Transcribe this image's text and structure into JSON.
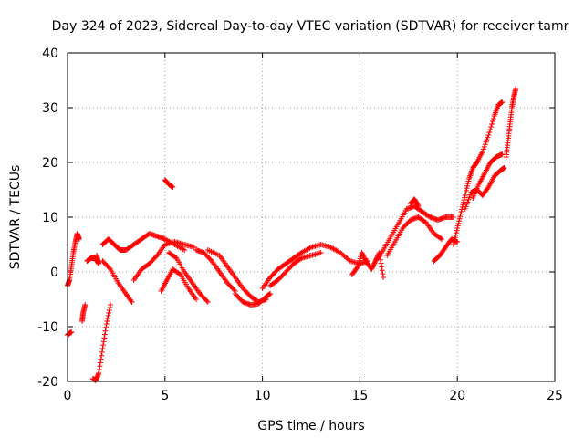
{
  "chart_data": {
    "type": "scatter",
    "title": "Day 324 of 2023, Sidereal Day-to-day VTEC variation (SDTVAR) for receiver tamr",
    "xlabel": "GPS time / hours",
    "ylabel": "SDTVAR / TECUs",
    "xlim": [
      0,
      25
    ],
    "ylim": [
      -20,
      40
    ],
    "xticks": [
      0,
      5,
      10,
      15,
      20,
      25
    ],
    "yticks": [
      -20,
      -10,
      0,
      10,
      20,
      30,
      40
    ],
    "grid": true,
    "marker": "+",
    "color": "#ff0000",
    "segments": [
      {
        "name": "early-tail",
        "points": [
          [
            0.0,
            -11.5
          ],
          [
            0.1,
            -11.2
          ],
          [
            0.2,
            -11.0
          ]
        ]
      },
      {
        "name": "rise-0",
        "points": [
          [
            0.0,
            -2.5
          ],
          [
            0.1,
            -1.5
          ],
          [
            0.2,
            1.0
          ],
          [
            0.3,
            3.5
          ],
          [
            0.4,
            5.5
          ],
          [
            0.5,
            7.0
          ],
          [
            0.6,
            6.0
          ]
        ]
      },
      {
        "name": "drop-1",
        "points": [
          [
            0.75,
            -9.0
          ],
          [
            0.8,
            -7.5
          ],
          [
            0.9,
            -6.0
          ]
        ]
      },
      {
        "name": "plateau-1",
        "points": [
          [
            1.0,
            2.0
          ],
          [
            1.2,
            2.5
          ],
          [
            1.4,
            2.5
          ],
          [
            1.6,
            1.5
          ],
          [
            1.5,
            3.0
          ]
        ]
      },
      {
        "name": "deep-dip",
        "points": [
          [
            1.3,
            -19.5
          ],
          [
            1.45,
            -19.8
          ],
          [
            1.6,
            -18.5
          ],
          [
            1.8,
            -14.0
          ],
          [
            2.0,
            -9.5
          ],
          [
            2.2,
            -6.0
          ]
        ]
      },
      {
        "name": "arc-2",
        "points": [
          [
            1.8,
            5.0
          ],
          [
            2.1,
            6.0
          ],
          [
            2.4,
            5.0
          ],
          [
            2.7,
            4.0
          ],
          [
            3.0,
            4.0
          ],
          [
            3.4,
            5.0
          ],
          [
            3.8,
            6.0
          ],
          [
            4.2,
            7.0
          ],
          [
            4.6,
            6.5
          ],
          [
            5.0,
            6.0
          ],
          [
            5.5,
            5.0
          ],
          [
            6.0,
            4.0
          ]
        ]
      },
      {
        "name": "descend-2",
        "points": [
          [
            1.8,
            2.0
          ],
          [
            2.2,
            0.5
          ],
          [
            2.6,
            -2.0
          ],
          [
            3.0,
            -4.0
          ],
          [
            3.3,
            -5.5
          ]
        ]
      },
      {
        "name": "arc-3",
        "points": [
          [
            3.4,
            -1.5
          ],
          [
            3.8,
            0.5
          ],
          [
            4.2,
            1.5
          ],
          [
            4.6,
            3.0
          ],
          [
            5.0,
            5.0
          ],
          [
            5.5,
            5.5
          ],
          [
            6.0,
            5.0
          ],
          [
            6.5,
            4.5
          ]
        ]
      },
      {
        "name": "spike-5",
        "points": [
          [
            5.0,
            16.8
          ],
          [
            5.2,
            16.0
          ],
          [
            5.4,
            15.5
          ]
        ]
      },
      {
        "name": "dip-4",
        "points": [
          [
            4.8,
            -3.5
          ],
          [
            5.1,
            -1.5
          ],
          [
            5.4,
            0.5
          ],
          [
            5.8,
            -0.5
          ],
          [
            6.2,
            -3.0
          ],
          [
            6.6,
            -5.0
          ]
        ]
      },
      {
        "name": "fan-5",
        "points": [
          [
            5.2,
            3.5
          ],
          [
            5.6,
            2.5
          ],
          [
            6.0,
            0.0
          ],
          [
            6.4,
            -2.0
          ],
          [
            6.8,
            -4.0
          ],
          [
            7.2,
            -5.5
          ]
        ]
      },
      {
        "name": "fan-6",
        "points": [
          [
            6.6,
            4.0
          ],
          [
            7.0,
            3.5
          ],
          [
            7.4,
            2.0
          ],
          [
            7.8,
            0.0
          ],
          [
            8.2,
            -2.0
          ],
          [
            8.6,
            -3.5
          ]
        ]
      },
      {
        "name": "fan-7",
        "points": [
          [
            7.2,
            4.0
          ],
          [
            7.8,
            3.0
          ],
          [
            8.2,
            1.0
          ],
          [
            8.6,
            -1.0
          ],
          [
            9.0,
            -3.0
          ],
          [
            9.4,
            -4.5
          ],
          [
            9.8,
            -5.5
          ],
          [
            10.2,
            -5.0
          ]
        ]
      },
      {
        "name": "valley-9",
        "points": [
          [
            8.6,
            -4.0
          ],
          [
            9.0,
            -5.5
          ],
          [
            9.4,
            -6.0
          ],
          [
            9.8,
            -5.8
          ],
          [
            10.2,
            -4.5
          ],
          [
            10.4,
            -4.0
          ]
        ]
      },
      {
        "name": "climb-10",
        "points": [
          [
            10.0,
            -3.0
          ],
          [
            10.4,
            -1.0
          ],
          [
            10.8,
            0.5
          ],
          [
            11.2,
            1.5
          ],
          [
            11.6,
            2.5
          ],
          [
            12.0,
            3.5
          ],
          [
            12.5,
            4.5
          ],
          [
            13.0,
            5.0
          ],
          [
            13.5,
            4.5
          ],
          [
            14.0,
            3.5
          ],
          [
            14.5,
            2.0
          ],
          [
            15.0,
            1.5
          ],
          [
            15.4,
            2.0
          ]
        ]
      },
      {
        "name": "climb-10b",
        "points": [
          [
            10.4,
            -2.5
          ],
          [
            10.8,
            -1.5
          ],
          [
            11.2,
            0.0
          ],
          [
            11.6,
            1.5
          ],
          [
            12.0,
            2.5
          ],
          [
            12.5,
            3.0
          ],
          [
            13.0,
            3.5
          ]
        ]
      },
      {
        "name": "bumps-14",
        "points": [
          [
            14.6,
            -0.5
          ],
          [
            14.9,
            1.0
          ],
          [
            15.1,
            3.5
          ],
          [
            15.3,
            2.0
          ],
          [
            15.6,
            0.5
          ],
          [
            15.8,
            2.0
          ],
          [
            16.0,
            3.5
          ],
          [
            16.2,
            -1.0
          ]
        ]
      },
      {
        "name": "rise-16",
        "points": [
          [
            15.8,
            2.0
          ],
          [
            16.2,
            4.0
          ],
          [
            16.6,
            6.5
          ],
          [
            17.0,
            9.0
          ],
          [
            17.4,
            11.5
          ],
          [
            17.8,
            12.0
          ],
          [
            18.2,
            11.0
          ],
          [
            18.6,
            10.0
          ],
          [
            19.0,
            9.5
          ],
          [
            19.4,
            10.0
          ],
          [
            19.8,
            10.0
          ]
        ]
      },
      {
        "name": "rise-16b",
        "points": [
          [
            16.4,
            3.0
          ],
          [
            16.8,
            5.5
          ],
          [
            17.2,
            8.0
          ],
          [
            17.6,
            9.5
          ],
          [
            18.0,
            10.0
          ],
          [
            18.4,
            9.0
          ],
          [
            18.8,
            7.0
          ],
          [
            19.2,
            6.0
          ]
        ]
      },
      {
        "name": "spike-18",
        "points": [
          [
            17.6,
            12.5
          ],
          [
            17.8,
            13.3
          ],
          [
            18.0,
            12.0
          ]
        ]
      },
      {
        "name": "dip-19",
        "points": [
          [
            18.8,
            2.0
          ],
          [
            19.1,
            3.0
          ],
          [
            19.4,
            4.5
          ],
          [
            19.7,
            6.0
          ],
          [
            20.0,
            5.5
          ]
        ]
      },
      {
        "name": "final-up",
        "points": [
          [
            19.8,
            5.0
          ],
          [
            20.0,
            8.0
          ],
          [
            20.2,
            11.0
          ],
          [
            20.4,
            14.0
          ],
          [
            20.6,
            17.0
          ],
          [
            20.8,
            19.0
          ],
          [
            21.0,
            20.0
          ],
          [
            21.3,
            22.0
          ],
          [
            21.6,
            25.0
          ],
          [
            21.9,
            28.5
          ],
          [
            22.1,
            30.5
          ],
          [
            22.3,
            31.0
          ]
        ]
      },
      {
        "name": "final-up-b",
        "points": [
          [
            20.4,
            11.5
          ],
          [
            20.7,
            14.5
          ],
          [
            21.0,
            15.0
          ],
          [
            21.3,
            14.0
          ],
          [
            21.6,
            15.5
          ],
          [
            21.9,
            17.5
          ],
          [
            22.2,
            18.5
          ],
          [
            22.4,
            19.0
          ]
        ]
      },
      {
        "name": "final-up-c",
        "points": [
          [
            20.8,
            13.5
          ],
          [
            21.1,
            16.0
          ],
          [
            21.4,
            18.0
          ],
          [
            21.7,
            20.0
          ],
          [
            22.0,
            21.0
          ],
          [
            22.3,
            21.5
          ]
        ]
      },
      {
        "name": "end-spike",
        "points": [
          [
            22.5,
            21.0
          ],
          [
            22.6,
            24.0
          ],
          [
            22.7,
            27.0
          ],
          [
            22.8,
            30.0
          ],
          [
            22.9,
            32.0
          ],
          [
            23.0,
            33.5
          ]
        ]
      }
    ]
  }
}
